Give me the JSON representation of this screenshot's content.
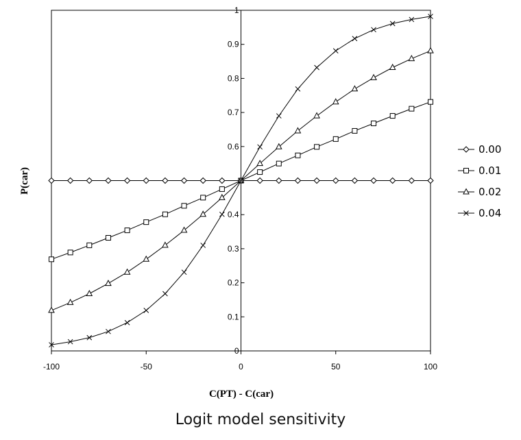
{
  "caption": "Logit model sensitivity",
  "chart_data": {
    "type": "line",
    "title": "",
    "xlabel": "C(PT) - C(car)",
    "ylabel": "P(car)",
    "xlim": [
      -100,
      100
    ],
    "ylim": [
      0,
      1
    ],
    "x_ticks": [
      -100,
      -50,
      0,
      50,
      100
    ],
    "y_ticks": [
      0,
      0.1,
      0.2,
      0.3,
      0.4,
      0.5,
      0.6,
      0.7,
      0.8,
      0.9,
      1
    ],
    "y_tick_labels": [
      "0",
      "0.1",
      "0.2",
      "0.3",
      "0.4",
      "",
      "0.6",
      "0.7",
      "0.8",
      "0.9",
      "1"
    ],
    "grid": false,
    "legend_position": "right",
    "x": [
      -100,
      -90,
      -80,
      -70,
      -60,
      -50,
      -40,
      -30,
      -20,
      -10,
      0,
      10,
      20,
      30,
      40,
      50,
      60,
      70,
      80,
      90,
      100
    ],
    "series": [
      {
        "name": "0.00",
        "marker": "diamond",
        "values": [
          0.5,
          0.5,
          0.5,
          0.5,
          0.5,
          0.5,
          0.5,
          0.5,
          0.5,
          0.5,
          0.5,
          0.5,
          0.5,
          0.5,
          0.5,
          0.5,
          0.5,
          0.5,
          0.5,
          0.5,
          0.5
        ]
      },
      {
        "name": "0.01",
        "marker": "square",
        "values": [
          0.269,
          0.289,
          0.31,
          0.332,
          0.354,
          0.378,
          0.401,
          0.426,
          0.45,
          0.475,
          0.5,
          0.525,
          0.55,
          0.574,
          0.599,
          0.622,
          0.646,
          0.668,
          0.69,
          0.711,
          0.731
        ]
      },
      {
        "name": "0.02",
        "marker": "triangle",
        "values": [
          0.119,
          0.142,
          0.168,
          0.198,
          0.231,
          0.269,
          0.31,
          0.354,
          0.401,
          0.45,
          0.5,
          0.55,
          0.599,
          0.646,
          0.69,
          0.731,
          0.769,
          0.802,
          0.832,
          0.858,
          0.881
        ]
      },
      {
        "name": "0.04",
        "marker": "x",
        "values": [
          0.018,
          0.027,
          0.039,
          0.057,
          0.083,
          0.119,
          0.168,
          0.231,
          0.31,
          0.401,
          0.5,
          0.599,
          0.69,
          0.769,
          0.832,
          0.881,
          0.917,
          0.943,
          0.961,
          0.973,
          0.982
        ]
      }
    ]
  }
}
